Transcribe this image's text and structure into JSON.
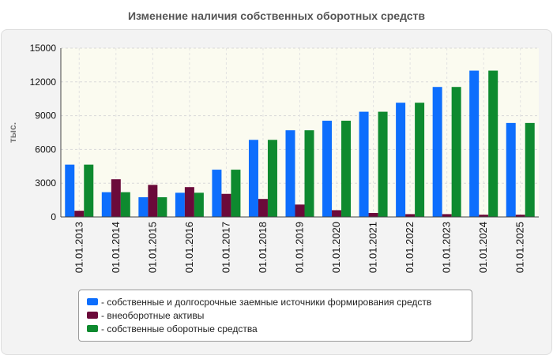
{
  "chart_data": {
    "type": "bar",
    "title": "Изменение наличия собственных оборотных средств",
    "ylabel": "тыс.",
    "xlabel": "",
    "ylim": [
      0,
      15000
    ],
    "yticks": [
      "0",
      "3000",
      "6000",
      "9000",
      "12000",
      "15000"
    ],
    "grid": true,
    "legend_position": "bottom",
    "categories": [
      "01.01.2013",
      "01.01.2014",
      "01.01.2015",
      "01.01.2016",
      "01.01.2017",
      "01.01.2018",
      "01.01.2019",
      "01.01.2020",
      "01.01.2021",
      "01.01.2022",
      "01.01.2023",
      "01.01.2024",
      "01.01.2025"
    ],
    "series": [
      {
        "name": "- собственные и долгосрочные заемные источники формирования средств",
        "color": "#0d6efd",
        "values": [
          4650,
          2200,
          1750,
          2150,
          4200,
          6850,
          7700,
          8550,
          9350,
          10150,
          11550,
          13000,
          8350
        ]
      },
      {
        "name": "- внеоборотные активы",
        "color": "#6b0a3a",
        "values": [
          550,
          3350,
          2850,
          2650,
          2050,
          1600,
          1100,
          600,
          350,
          250,
          250,
          200,
          200
        ]
      },
      {
        "name": "- собственные оборотные средства",
        "color": "#0e8a2f",
        "values": [
          4650,
          2200,
          1750,
          2150,
          4200,
          6850,
          7700,
          8550,
          9350,
          10150,
          11550,
          13000,
          8350
        ]
      }
    ]
  }
}
